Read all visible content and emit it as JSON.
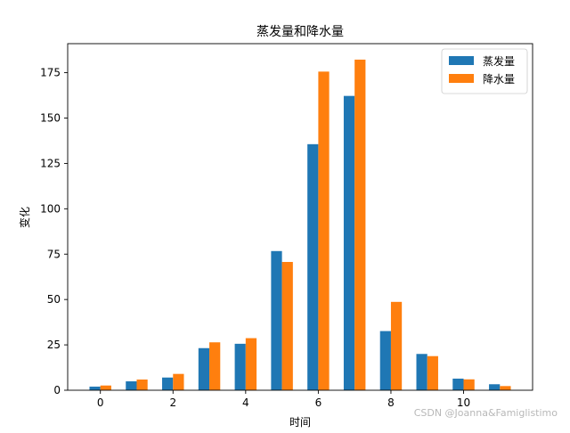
{
  "chart_data": {
    "type": "bar",
    "title": "蒸发量和降水量",
    "xlabel": "时间",
    "ylabel": "变化",
    "x": [
      0,
      1,
      2,
      3,
      4,
      5,
      6,
      7,
      8,
      9,
      10,
      11
    ],
    "xticks": [
      0,
      2,
      4,
      6,
      8,
      10
    ],
    "xlim": [
      -0.9,
      11.9
    ],
    "yticks": [
      0,
      25,
      50,
      75,
      100,
      125,
      150,
      175
    ],
    "ylim": [
      0,
      191
    ],
    "bar_width": 0.3,
    "grid": false,
    "legend_position": "top-right",
    "series": [
      {
        "name": "蒸发量",
        "color": "#1f77b4",
        "values": [
          2.0,
          4.9,
          7.0,
          23.2,
          25.6,
          76.7,
          135.6,
          162.2,
          32.6,
          20.0,
          6.4,
          3.3
        ]
      },
      {
        "name": "降水量",
        "color": "#ff7f0e",
        "values": [
          2.6,
          5.9,
          9.0,
          26.4,
          28.7,
          70.7,
          175.6,
          182.2,
          48.7,
          18.8,
          6.0,
          2.3
        ]
      }
    ]
  },
  "watermark": "CSDN @Joanna&Famiglistimo"
}
